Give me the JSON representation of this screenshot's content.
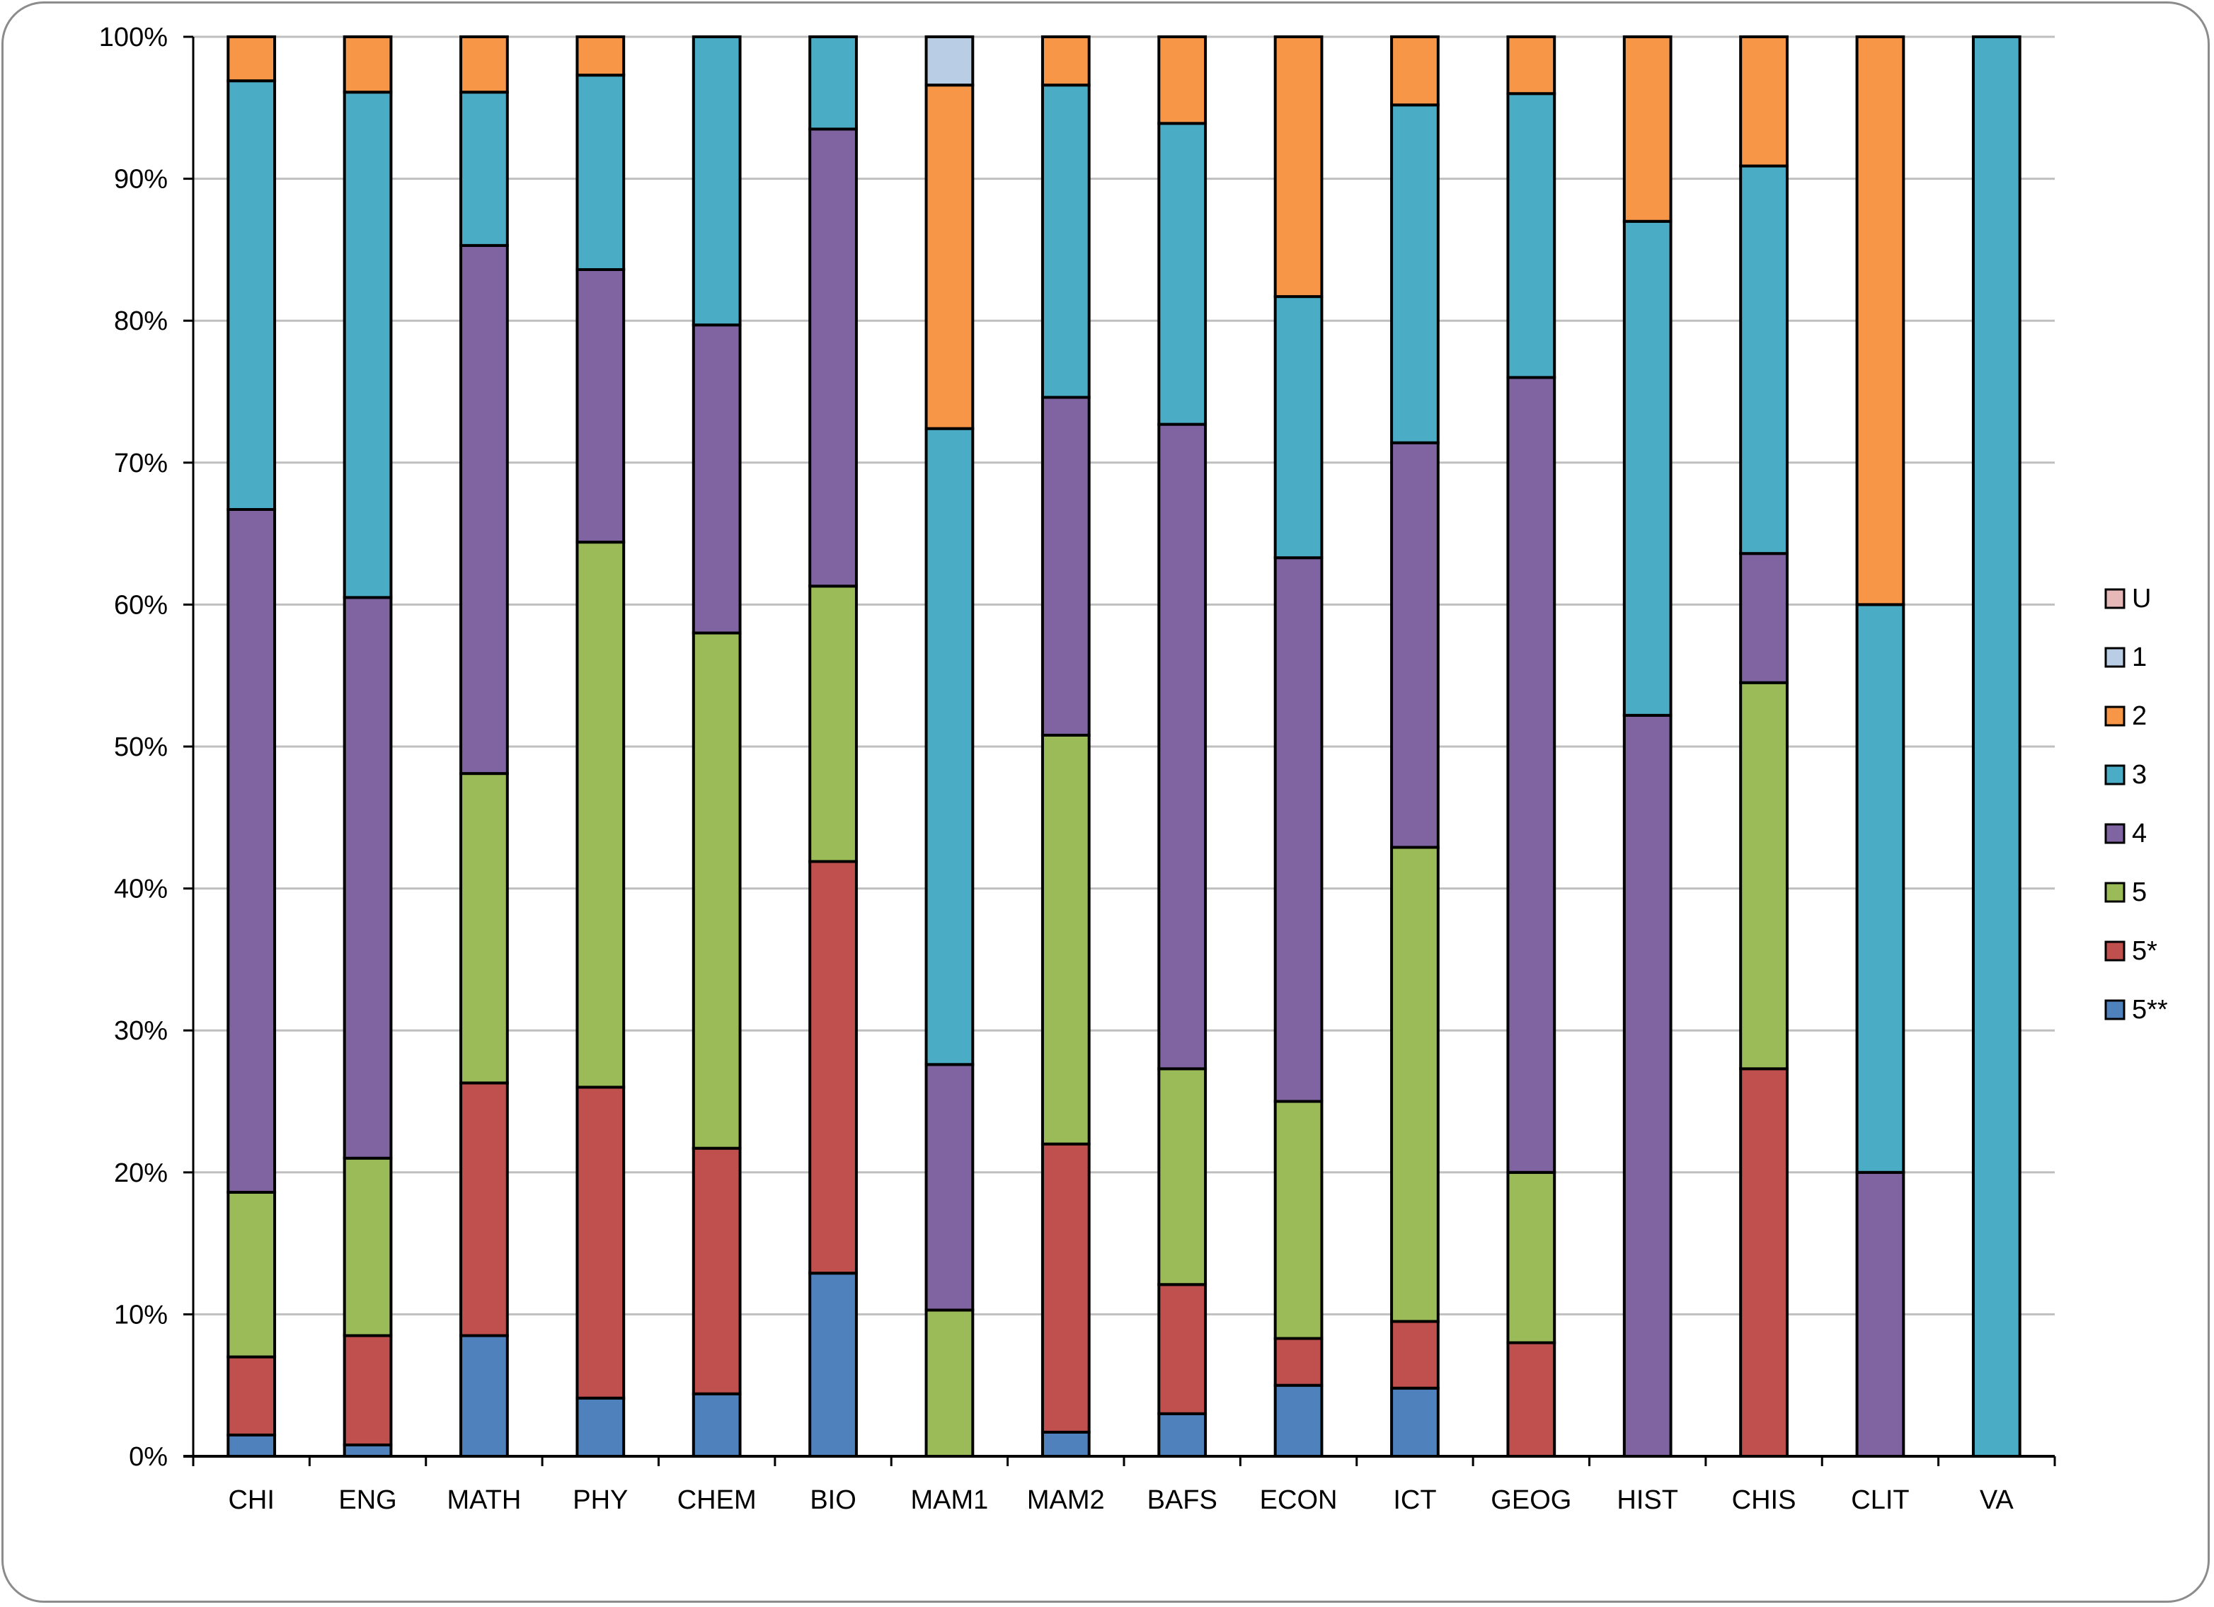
{
  "chart_data": {
    "type": "bar",
    "stacked": true,
    "percent": true,
    "title": "",
    "xlabel": "",
    "ylabel": "",
    "ylim": [
      0,
      100
    ],
    "yticks": [
      "0%",
      "10%",
      "20%",
      "30%",
      "40%",
      "50%",
      "60%",
      "70%",
      "80%",
      "90%",
      "100%"
    ],
    "grid": true,
    "legend_position": "right",
    "categories": [
      "CHI",
      "ENG",
      "MATH",
      "PHY",
      "CHEM",
      "BIO",
      "MAM1",
      "MAM2",
      "BAFS",
      "ECON",
      "ICT",
      "GEOG",
      "HIST",
      "CHIS",
      "CLIT",
      "VA"
    ],
    "series": [
      {
        "name": "5**",
        "color": "#4F81BD",
        "values": [
          1.5,
          0.8,
          8.5,
          4.1,
          4.4,
          12.9,
          0,
          1.7,
          3.0,
          5.0,
          4.8,
          0,
          0,
          0,
          0,
          0
        ]
      },
      {
        "name": "5*",
        "color": "#C0504D",
        "values": [
          5.5,
          7.7,
          17.8,
          21.9,
          17.3,
          29.0,
          0,
          20.3,
          9.1,
          3.3,
          4.7,
          8.0,
          0,
          27.3,
          0,
          0
        ]
      },
      {
        "name": "5",
        "color": "#9BBB59",
        "values": [
          11.6,
          12.5,
          21.8,
          38.4,
          36.3,
          19.4,
          10.3,
          28.8,
          15.2,
          16.7,
          33.4,
          12.0,
          0,
          27.2,
          0,
          0
        ]
      },
      {
        "name": "4",
        "color": "#8064A2",
        "values": [
          48.1,
          39.5,
          37.2,
          19.2,
          21.7,
          32.2,
          17.3,
          23.8,
          45.4,
          38.3,
          28.5,
          56.0,
          52.2,
          9.1,
          20.0,
          0
        ]
      },
      {
        "name": "3",
        "color": "#4BACC6",
        "values": [
          30.2,
          35.6,
          10.8,
          13.7,
          20.3,
          6.5,
          44.8,
          22.0,
          21.2,
          18.4,
          23.8,
          20.0,
          34.8,
          27.3,
          40.0,
          100
        ]
      },
      {
        "name": "2",
        "color": "#F79646",
        "values": [
          3.1,
          3.9,
          3.9,
          2.7,
          0,
          0,
          24.2,
          3.4,
          6.1,
          18.3,
          4.8,
          4.0,
          13.0,
          9.1,
          40.0,
          0
        ]
      },
      {
        "name": "1",
        "color": "#B9CDE5",
        "values": [
          0,
          0,
          0,
          0,
          0,
          0,
          3.4,
          0,
          0,
          0,
          0,
          0,
          0,
          0,
          0,
          0
        ]
      },
      {
        "name": "U",
        "color": "#E6B9B8",
        "values": [
          0,
          0,
          0,
          0,
          0,
          0,
          0,
          0,
          0,
          0,
          0,
          0,
          0,
          0,
          0,
          0
        ]
      }
    ],
    "legend_order": [
      "U",
      "1",
      "2",
      "3",
      "4",
      "5",
      "5*",
      "5**"
    ]
  }
}
